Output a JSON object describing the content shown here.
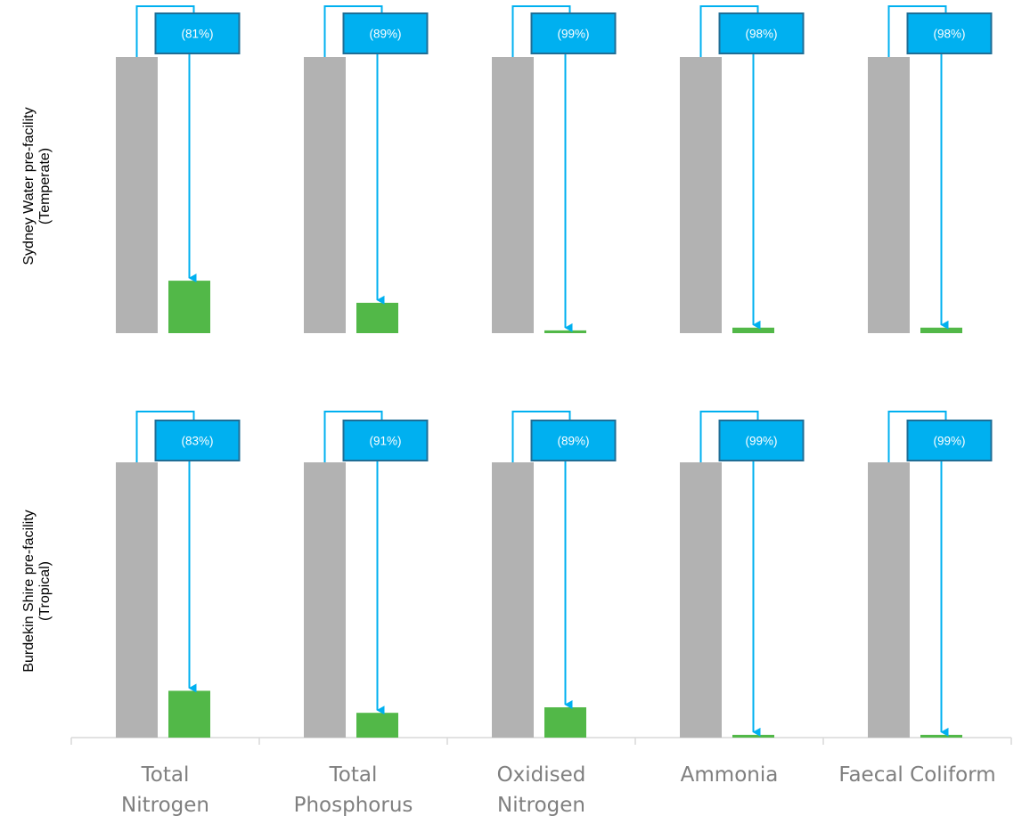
{
  "chart_data": {
    "type": "bar",
    "categories": [
      [
        "Total",
        "Nitrogen"
      ],
      [
        "Total",
        "Phosphorus"
      ],
      [
        "Oxidised",
        "Nitrogen"
      ],
      [
        "Ammonia"
      ],
      [
        "Faecal Coliform"
      ]
    ],
    "panels": [
      {
        "label_lines": [
          "Sydney Water pre-facility",
          "(Temperate)"
        ],
        "before": [
          100,
          100,
          100,
          100,
          100
        ],
        "after": [
          19,
          11,
          1,
          2,
          2
        ],
        "reduction_labels": [
          "(81%)",
          "(89%)",
          "(99%)",
          "(98%)",
          "(98%)"
        ]
      },
      {
        "label_lines": [
          "Burdekin Shire pre-facility",
          "(Tropical)"
        ],
        "before": [
          100,
          100,
          100,
          100,
          100
        ],
        "after": [
          17,
          9,
          11,
          1,
          1
        ],
        "reduction_labels": [
          "(83%)",
          "(91%)",
          "(89%)",
          "(99%)",
          "(99%)"
        ]
      }
    ],
    "ylim": [
      0,
      100
    ],
    "grid": false,
    "legend": "none",
    "colors": {
      "before": "#b2b2b2",
      "after": "#52b848",
      "arrow": "#00b0f0",
      "callout_fill": "#00b0f0",
      "callout_border": "#1f6e96",
      "callout_text": "#ffffff",
      "axis": "#d9d9d9",
      "category_text": "#7f7f7f"
    }
  }
}
